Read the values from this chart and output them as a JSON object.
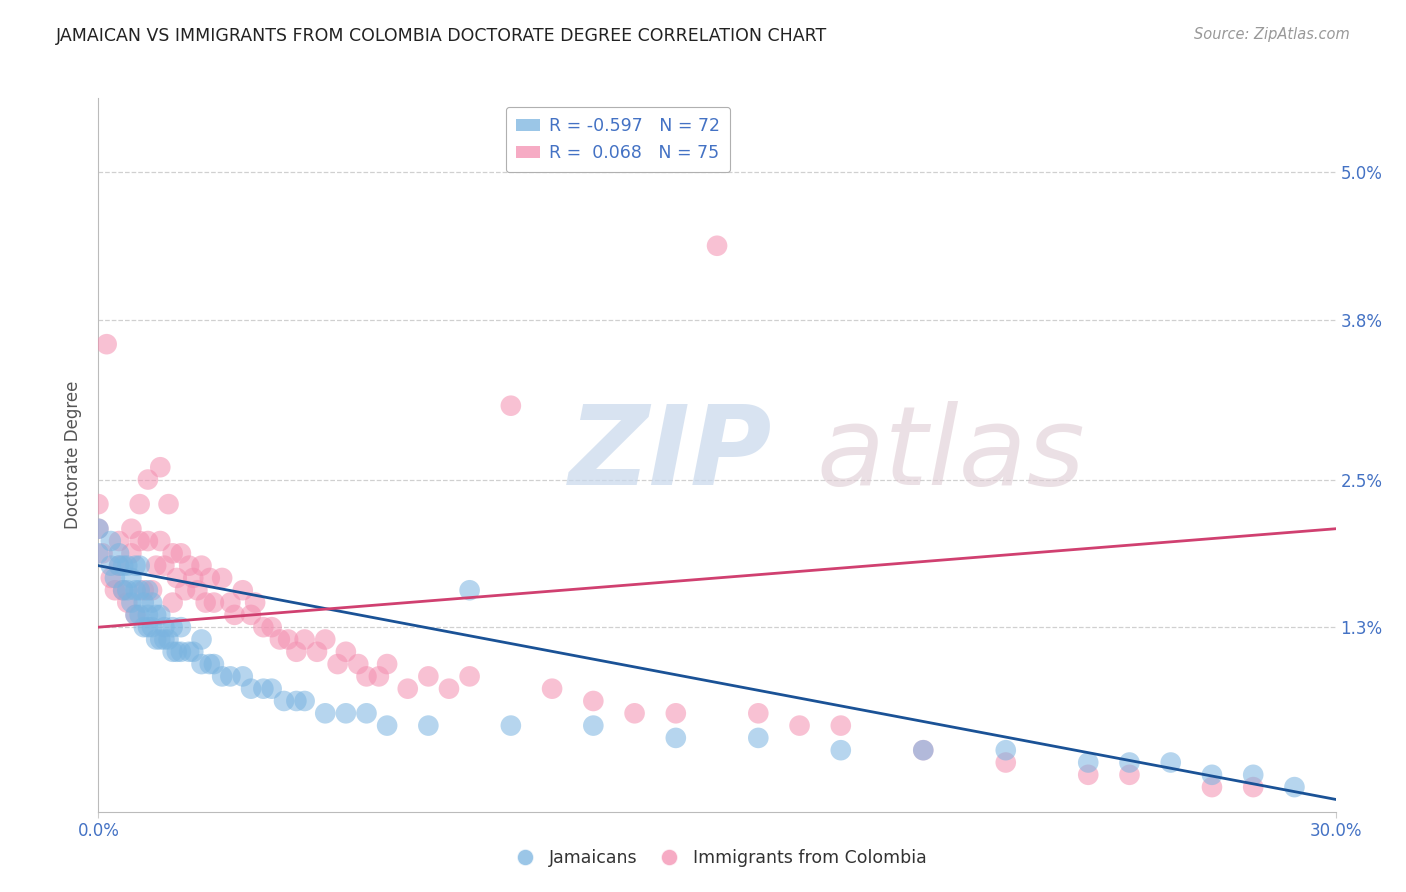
{
  "title": "JAMAICAN VS IMMIGRANTS FROM COLOMBIA DOCTORATE DEGREE CORRELATION CHART",
  "source": "Source: ZipAtlas.com",
  "ylabel": "Doctorate Degree",
  "ytick_labels": [
    "5.0%",
    "3.8%",
    "2.5%",
    "1.3%"
  ],
  "ytick_values": [
    0.05,
    0.038,
    0.025,
    0.013
  ],
  "xlim": [
    0.0,
    0.3
  ],
  "ylim": [
    -0.002,
    0.056
  ],
  "legend_entries": [
    {
      "label": "R = -0.597   N = 72",
      "color": "#7ab4e0"
    },
    {
      "label": "R =  0.068   N = 75",
      "color": "#f48fb0"
    }
  ],
  "legend_labels": [
    "Jamaicans",
    "Immigrants from Colombia"
  ],
  "background_color": "#ffffff",
  "grid_color": "#d0d0d0",
  "title_color": "#222222",
  "axis_tick_color": "#4472c4",
  "blue_color": "#7ab4e0",
  "pink_color": "#f48fb0",
  "blue_line_color": "#1a5296",
  "pink_line_color": "#d04070",
  "blue_line_x0": 0.0,
  "blue_line_y0": 0.018,
  "blue_line_x1": 0.3,
  "blue_line_y1": -0.001,
  "pink_line_x0": 0.0,
  "pink_line_y0": 0.013,
  "pink_line_x1": 0.3,
  "pink_line_y1": 0.021,
  "jamaicans_x": [
    0.0,
    0.0,
    0.003,
    0.003,
    0.004,
    0.005,
    0.005,
    0.006,
    0.006,
    0.007,
    0.007,
    0.008,
    0.008,
    0.009,
    0.009,
    0.009,
    0.01,
    0.01,
    0.01,
    0.011,
    0.011,
    0.012,
    0.012,
    0.012,
    0.013,
    0.013,
    0.014,
    0.014,
    0.015,
    0.015,
    0.016,
    0.016,
    0.017,
    0.018,
    0.018,
    0.019,
    0.02,
    0.02,
    0.022,
    0.023,
    0.025,
    0.025,
    0.027,
    0.028,
    0.03,
    0.032,
    0.035,
    0.037,
    0.04,
    0.042,
    0.045,
    0.048,
    0.05,
    0.055,
    0.06,
    0.065,
    0.07,
    0.08,
    0.09,
    0.1,
    0.12,
    0.14,
    0.16,
    0.18,
    0.2,
    0.22,
    0.24,
    0.25,
    0.26,
    0.27,
    0.28,
    0.29
  ],
  "jamaicans_y": [
    0.019,
    0.021,
    0.018,
    0.02,
    0.017,
    0.018,
    0.019,
    0.016,
    0.018,
    0.016,
    0.018,
    0.015,
    0.017,
    0.014,
    0.016,
    0.018,
    0.014,
    0.016,
    0.018,
    0.013,
    0.015,
    0.013,
    0.014,
    0.016,
    0.013,
    0.015,
    0.012,
    0.014,
    0.012,
    0.014,
    0.012,
    0.013,
    0.012,
    0.011,
    0.013,
    0.011,
    0.011,
    0.013,
    0.011,
    0.011,
    0.01,
    0.012,
    0.01,
    0.01,
    0.009,
    0.009,
    0.009,
    0.008,
    0.008,
    0.008,
    0.007,
    0.007,
    0.007,
    0.006,
    0.006,
    0.006,
    0.005,
    0.005,
    0.016,
    0.005,
    0.005,
    0.004,
    0.004,
    0.003,
    0.003,
    0.003,
    0.002,
    0.002,
    0.002,
    0.001,
    0.001,
    0.0
  ],
  "colombia_x": [
    0.0,
    0.0,
    0.001,
    0.002,
    0.003,
    0.004,
    0.005,
    0.005,
    0.006,
    0.007,
    0.008,
    0.008,
    0.009,
    0.01,
    0.01,
    0.011,
    0.012,
    0.012,
    0.013,
    0.014,
    0.015,
    0.015,
    0.016,
    0.017,
    0.018,
    0.018,
    0.019,
    0.02,
    0.021,
    0.022,
    0.023,
    0.024,
    0.025,
    0.026,
    0.027,
    0.028,
    0.03,
    0.032,
    0.033,
    0.035,
    0.037,
    0.038,
    0.04,
    0.042,
    0.044,
    0.046,
    0.048,
    0.05,
    0.053,
    0.055,
    0.058,
    0.06,
    0.063,
    0.065,
    0.068,
    0.07,
    0.075,
    0.08,
    0.085,
    0.09,
    0.1,
    0.11,
    0.12,
    0.13,
    0.14,
    0.15,
    0.16,
    0.17,
    0.18,
    0.2,
    0.22,
    0.24,
    0.25,
    0.27,
    0.28
  ],
  "colombia_y": [
    0.021,
    0.023,
    0.019,
    0.036,
    0.017,
    0.016,
    0.018,
    0.02,
    0.016,
    0.015,
    0.019,
    0.021,
    0.014,
    0.02,
    0.023,
    0.016,
    0.02,
    0.025,
    0.016,
    0.018,
    0.02,
    0.026,
    0.018,
    0.023,
    0.015,
    0.019,
    0.017,
    0.019,
    0.016,
    0.018,
    0.017,
    0.016,
    0.018,
    0.015,
    0.017,
    0.015,
    0.017,
    0.015,
    0.014,
    0.016,
    0.014,
    0.015,
    0.013,
    0.013,
    0.012,
    0.012,
    0.011,
    0.012,
    0.011,
    0.012,
    0.01,
    0.011,
    0.01,
    0.009,
    0.009,
    0.01,
    0.008,
    0.009,
    0.008,
    0.009,
    0.031,
    0.008,
    0.007,
    0.006,
    0.006,
    0.044,
    0.006,
    0.005,
    0.005,
    0.003,
    0.002,
    0.001,
    0.001,
    0.0,
    0.0
  ]
}
